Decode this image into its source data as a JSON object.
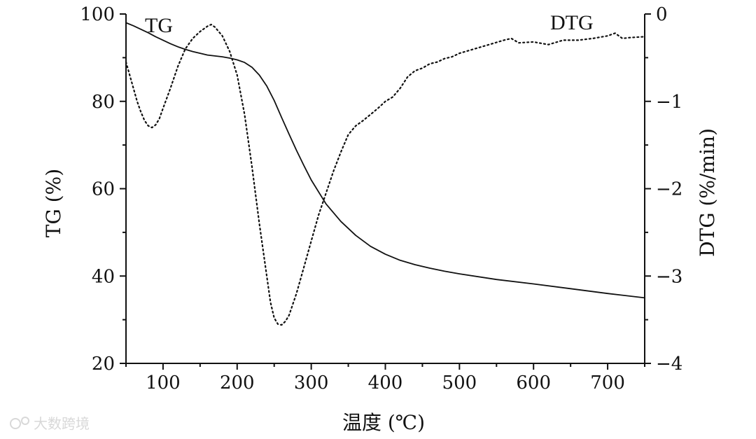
{
  "chart_data": {
    "type": "line",
    "xlabel": "温度 (℃)",
    "ylabel_left": "TG (%)",
    "ylabel_right": "DTG (%/min)",
    "xlim": [
      50,
      750
    ],
    "ylim_left": [
      20,
      100
    ],
    "ylim_right": [
      -4,
      0
    ],
    "x_ticks": [
      100,
      200,
      300,
      400,
      500,
      600,
      700
    ],
    "y_left_ticks": [
      20,
      40,
      60,
      80,
      100
    ],
    "y_right_ticks": [
      0,
      -1,
      -2,
      -3,
      -4
    ],
    "y_right_tick_labels": [
      "0",
      "−1",
      "−2",
      "−3",
      "−4"
    ],
    "grid": false,
    "series": [
      {
        "name": "TG",
        "axis": "left",
        "style": "solid",
        "x": [
          50,
          60,
          70,
          80,
          90,
          100,
          110,
          120,
          130,
          140,
          150,
          160,
          170,
          180,
          190,
          200,
          210,
          220,
          230,
          240,
          250,
          260,
          270,
          280,
          290,
          300,
          320,
          340,
          360,
          380,
          400,
          420,
          440,
          460,
          480,
          500,
          550,
          600,
          650,
          700,
          750
        ],
        "values": [
          98.0,
          97.3,
          96.5,
          95.7,
          94.8,
          94.0,
          93.2,
          92.5,
          91.9,
          91.4,
          91.0,
          90.6,
          90.4,
          90.2,
          89.9,
          89.5,
          88.9,
          87.8,
          86.0,
          83.5,
          80.2,
          76.3,
          72.5,
          68.8,
          65.3,
          62.0,
          56.5,
          52.5,
          49.3,
          46.8,
          45.0,
          43.6,
          42.6,
          41.8,
          41.1,
          40.5,
          39.2,
          38.2,
          37.1,
          36.0,
          35.0
        ]
      },
      {
        "name": "DTG",
        "axis": "right",
        "style": "dotted",
        "x": [
          50,
          55,
          60,
          65,
          70,
          75,
          80,
          85,
          90,
          95,
          100,
          110,
          120,
          130,
          140,
          150,
          160,
          165,
          170,
          180,
          190,
          200,
          210,
          220,
          230,
          240,
          245,
          250,
          255,
          260,
          265,
          270,
          280,
          290,
          300,
          310,
          320,
          330,
          340,
          350,
          360,
          370,
          380,
          390,
          400,
          410,
          420,
          430,
          440,
          450,
          460,
          470,
          480,
          490,
          500,
          520,
          540,
          560,
          570,
          580,
          600,
          620,
          640,
          660,
          680,
          700,
          710,
          720,
          730,
          750
        ],
        "values": [
          -0.55,
          -0.7,
          -0.85,
          -1.0,
          -1.12,
          -1.22,
          -1.28,
          -1.3,
          -1.27,
          -1.2,
          -1.08,
          -0.85,
          -0.6,
          -0.4,
          -0.28,
          -0.2,
          -0.14,
          -0.12,
          -0.15,
          -0.25,
          -0.43,
          -0.7,
          -1.15,
          -1.75,
          -2.4,
          -3.0,
          -3.3,
          -3.48,
          -3.55,
          -3.56,
          -3.52,
          -3.45,
          -3.2,
          -2.9,
          -2.6,
          -2.3,
          -2.05,
          -1.8,
          -1.58,
          -1.38,
          -1.28,
          -1.22,
          -1.15,
          -1.08,
          -1.0,
          -0.95,
          -0.85,
          -0.72,
          -0.65,
          -0.62,
          -0.57,
          -0.55,
          -0.51,
          -0.49,
          -0.45,
          -0.4,
          -0.35,
          -0.3,
          -0.28,
          -0.33,
          -0.32,
          -0.35,
          -0.3,
          -0.3,
          -0.28,
          -0.25,
          -0.22,
          -0.28,
          -0.27,
          -0.26
        ]
      }
    ]
  },
  "watermark": "大数跨境"
}
